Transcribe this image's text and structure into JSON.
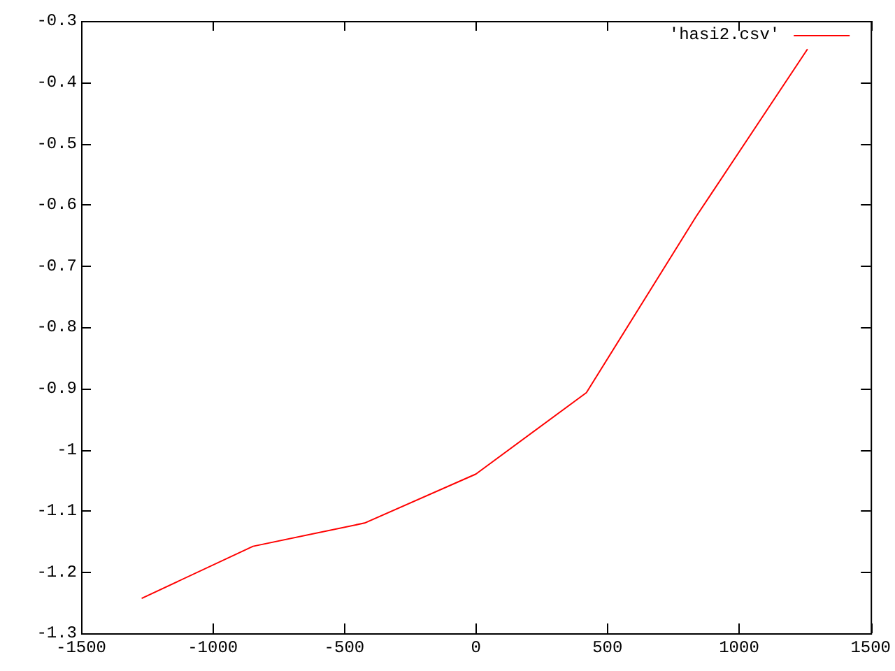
{
  "chart_data": {
    "type": "line",
    "x": [
      -1270,
      -847,
      -423,
      0,
      420,
      836,
      1260
    ],
    "series": [
      {
        "name": "'hasi2.csv'",
        "color": "#ff0000",
        "values": [
          -1.243,
          -1.158,
          -1.12,
          -1.04,
          -0.907,
          -0.62,
          -0.346
        ]
      }
    ],
    "xlim": [
      -1500,
      1500
    ],
    "xticks": [
      -1500,
      -1000,
      -500,
      0,
      500,
      1000,
      1500
    ],
    "ylim": [
      -1.3,
      -0.3
    ],
    "yticks": [
      -1.3,
      -1.2,
      -1.1,
      -1,
      -0.9,
      -0.8,
      -0.7,
      -0.6,
      -0.5,
      -0.4,
      -0.3
    ],
    "grid": false,
    "legend": "top right",
    "marker": "none",
    "line_style": "solid"
  }
}
